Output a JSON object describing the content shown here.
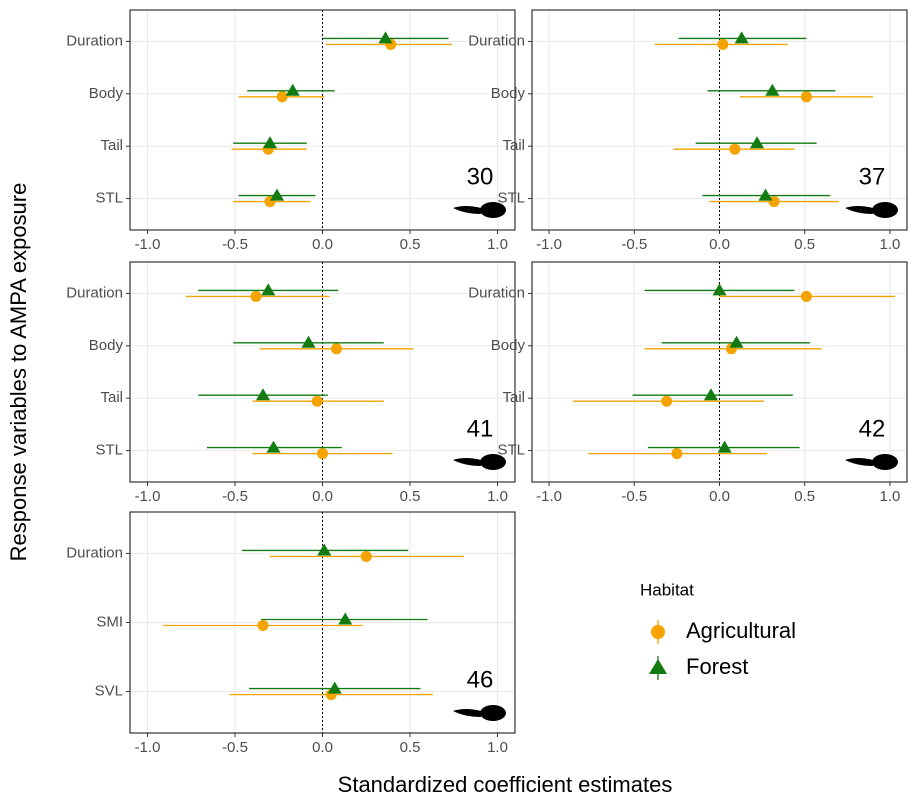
{
  "figure": {
    "ylabel": "Response variables to AMPA exposure",
    "xlabel": "Standardized coefficient estimates",
    "legend_title": "Habitat"
  },
  "chart_data": [
    {
      "type": "forest",
      "annotation": "30",
      "categories": [
        "Duration",
        "Body",
        "Tail",
        "STL"
      ],
      "series": [
        {
          "name": "Agricultural",
          "color": "#f5a300",
          "marker": "circle",
          "values": [
            0.39,
            -0.23,
            -0.31,
            -0.3
          ],
          "lower": [
            0.02,
            -0.48,
            -0.52,
            -0.51
          ],
          "upper": [
            0.74,
            0.01,
            -0.09,
            -0.07
          ]
        },
        {
          "name": "Forest",
          "color": "#117a11",
          "marker": "triangle",
          "values": [
            0.36,
            -0.17,
            -0.3,
            -0.26
          ],
          "lower": [
            0.0,
            -0.43,
            -0.51,
            -0.48
          ],
          "upper": [
            0.72,
            0.07,
            -0.09,
            -0.04
          ]
        }
      ],
      "xlim": [
        -1.1,
        1.1
      ],
      "xticks": [
        {
          "value": -1,
          "label": "-1.0"
        },
        -0.5,
        {
          "value": 0,
          "label": "0.0"
        },
        0.5,
        {
          "value": 1,
          "label": "1.0"
        }
      ],
      "grid": true,
      "vline": 0
    },
    {
      "type": "forest",
      "annotation": "37",
      "categories": [
        "Duration",
        "Body",
        "Tail",
        "STL"
      ],
      "series": [
        {
          "name": "Agricultural",
          "color": "#f5a300",
          "marker": "circle",
          "values": [
            0.02,
            0.51,
            0.09,
            0.32
          ],
          "lower": [
            -0.38,
            0.12,
            -0.27,
            -0.06
          ],
          "upper": [
            0.4,
            0.9,
            0.44,
            0.7
          ]
        },
        {
          "name": "Forest",
          "color": "#117a11",
          "marker": "triangle",
          "values": [
            0.13,
            0.31,
            0.22,
            0.27
          ],
          "lower": [
            -0.24,
            -0.07,
            -0.14,
            -0.1
          ],
          "upper": [
            0.51,
            0.68,
            0.57,
            0.65
          ]
        }
      ],
      "xlim": [
        -1.1,
        1.1
      ],
      "xticks": [
        {
          "value": -1,
          "label": "-1.0"
        },
        -0.5,
        {
          "value": 0,
          "label": "0.0"
        },
        0.5,
        {
          "value": 1,
          "label": "1.0"
        }
      ],
      "grid": true,
      "vline": 0
    },
    {
      "type": "forest",
      "annotation": "41",
      "categories": [
        "Duration",
        "Body",
        "Tail",
        "STL"
      ],
      "series": [
        {
          "name": "Agricultural",
          "color": "#f5a300",
          "marker": "circle",
          "values": [
            -0.38,
            0.08,
            -0.03,
            0.0
          ],
          "lower": [
            -0.78,
            -0.36,
            -0.4,
            -0.4
          ],
          "upper": [
            0.04,
            0.52,
            0.35,
            0.4
          ]
        },
        {
          "name": "Forest",
          "color": "#117a11",
          "marker": "triangle",
          "values": [
            -0.31,
            -0.08,
            -0.34,
            -0.28
          ],
          "lower": [
            -0.71,
            -0.51,
            -0.71,
            -0.66
          ],
          "upper": [
            0.09,
            0.35,
            0.03,
            0.11
          ]
        }
      ],
      "xlim": [
        -1.1,
        1.1
      ],
      "xticks": [
        {
          "value": -1,
          "label": "-1.0"
        },
        -0.5,
        {
          "value": 0,
          "label": "0.0"
        },
        0.5,
        {
          "value": 1,
          "label": "1.0"
        }
      ],
      "grid": true,
      "vline": 0
    },
    {
      "type": "forest",
      "annotation": "42",
      "categories": [
        "Duration",
        "Body",
        "Tail",
        "STL"
      ],
      "series": [
        {
          "name": "Agricultural",
          "color": "#f5a300",
          "marker": "circle",
          "values": [
            0.51,
            0.07,
            -0.31,
            -0.25
          ],
          "lower": [
            0.0,
            -0.44,
            -0.86,
            -0.77
          ],
          "upper": [
            1.03,
            0.6,
            0.26,
            0.28
          ]
        },
        {
          "name": "Forest",
          "color": "#117a11",
          "marker": "triangle",
          "values": [
            0.0,
            0.1,
            -0.05,
            0.03
          ],
          "lower": [
            -0.44,
            -0.34,
            -0.51,
            -0.42
          ],
          "upper": [
            0.44,
            0.53,
            0.43,
            0.47
          ]
        }
      ],
      "xlim": [
        -1.1,
        1.1
      ],
      "xticks": [
        {
          "value": -1,
          "label": "-1.0"
        },
        -0.5,
        {
          "value": 0,
          "label": "0.0"
        },
        0.5,
        {
          "value": 1,
          "label": "1.0"
        }
      ],
      "grid": true,
      "vline": 0
    },
    {
      "type": "forest",
      "annotation": "46",
      "categories": [
        "Duration",
        "SMI",
        "SVL"
      ],
      "series": [
        {
          "name": "Agricultural",
          "color": "#f5a300",
          "marker": "circle",
          "values": [
            0.25,
            -0.34,
            0.05
          ],
          "lower": [
            -0.3,
            -0.91,
            -0.53
          ],
          "upper": [
            0.81,
            0.23,
            0.63
          ]
        },
        {
          "name": "Forest",
          "color": "#117a11",
          "marker": "triangle",
          "values": [
            0.01,
            0.13,
            0.07
          ],
          "lower": [
            -0.46,
            -0.35,
            -0.42
          ],
          "upper": [
            0.49,
            0.6,
            0.56
          ]
        }
      ],
      "xlim": [
        -1.1,
        1.1
      ],
      "xticks": [
        {
          "value": -1,
          "label": "-1.0"
        },
        -0.5,
        {
          "value": 0,
          "label": "0.0"
        },
        0.5,
        {
          "value": 1,
          "label": "1.0"
        }
      ],
      "grid": true,
      "vline": 0
    }
  ]
}
